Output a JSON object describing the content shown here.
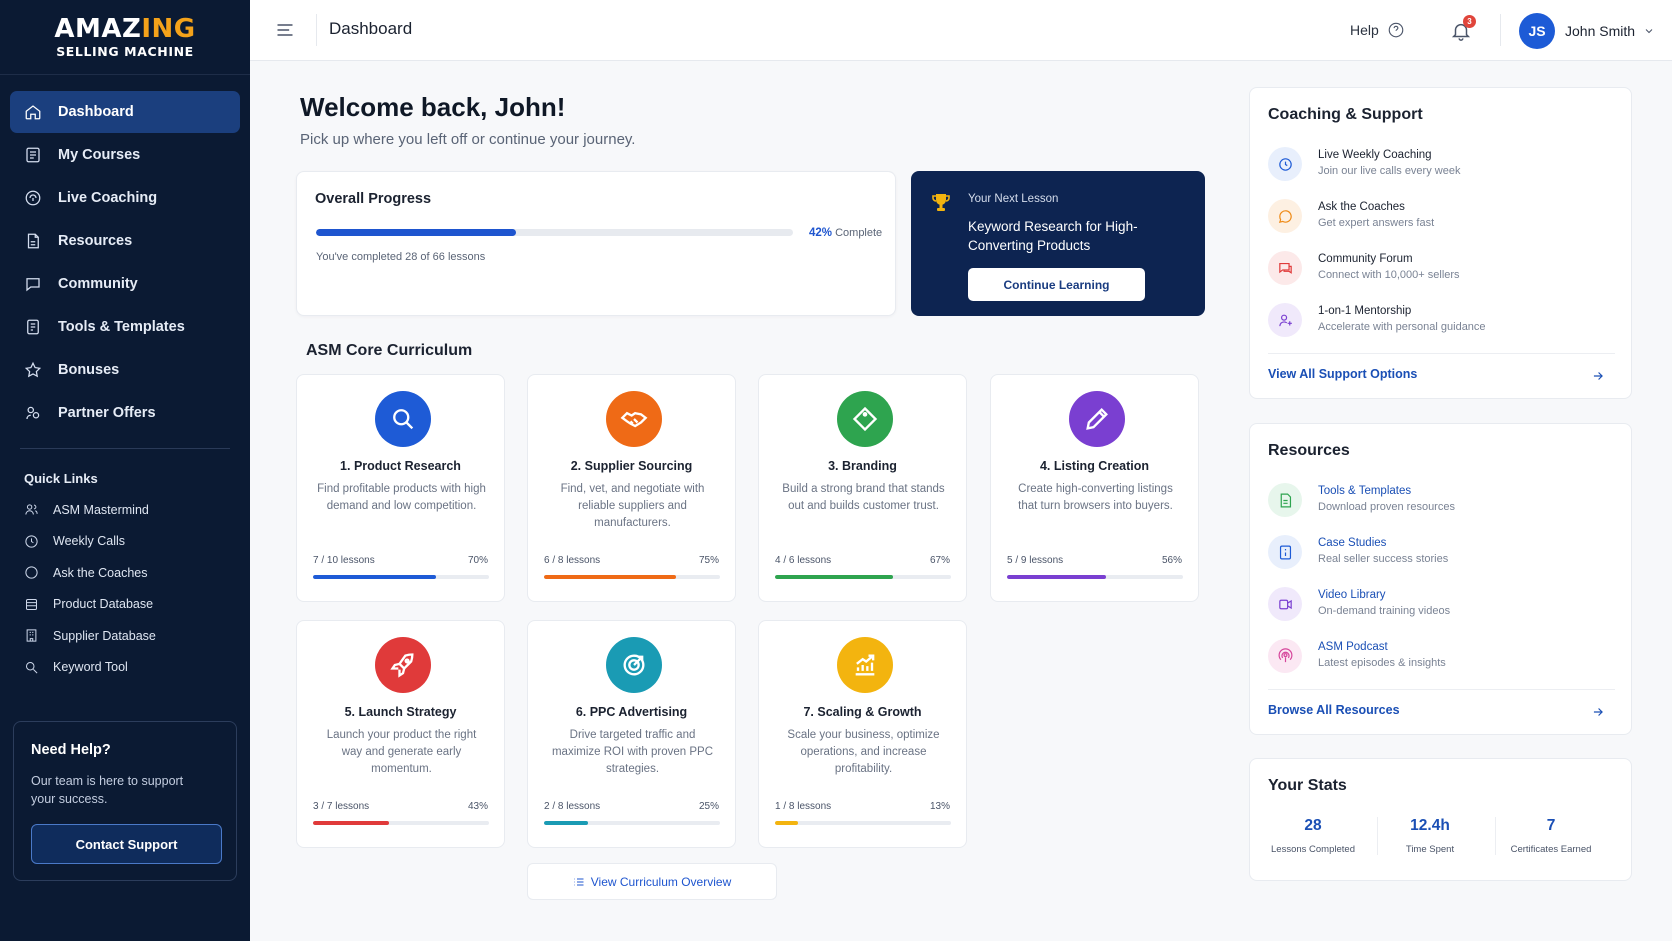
{
  "logo": {
    "line1_a": "AMAZ",
    "line1_b": "ING",
    "line2": "SELLING MACHINE"
  },
  "sidebar": {
    "nav": [
      {
        "label": "Dashboard",
        "icon": "home-icon",
        "active": true
      },
      {
        "label": "My Courses",
        "icon": "courses-icon"
      },
      {
        "label": "Live Coaching",
        "icon": "coaching-icon"
      },
      {
        "label": "Resources",
        "icon": "resources-icon"
      },
      {
        "label": "Community",
        "icon": "community-icon"
      },
      {
        "label": "Tools & Templates",
        "icon": "tools-icon"
      },
      {
        "label": "Bonuses",
        "icon": "star-icon"
      },
      {
        "label": "Partner Offers",
        "icon": "partner-icon"
      }
    ],
    "quick_links_title": "Quick Links",
    "quick_links": [
      {
        "label": "ASM Mastermind",
        "icon": "group-icon"
      },
      {
        "label": "Weekly Calls",
        "icon": "clock-icon"
      },
      {
        "label": "Ask the Coaches",
        "icon": "chat-icon"
      },
      {
        "label": "Product Database",
        "icon": "database-icon"
      },
      {
        "label": "Supplier Database",
        "icon": "building-icon"
      },
      {
        "label": "Keyword Tool",
        "icon": "search-icon"
      }
    ],
    "help": {
      "title": "Need Help?",
      "text": "Our team is here to support your success.",
      "button": "Contact Support"
    }
  },
  "header": {
    "title": "Dashboard",
    "help_label": "Help",
    "notification_count": "3",
    "user_initials": "JS",
    "user_name": "John Smith"
  },
  "welcome": {
    "title": "Welcome back, John!",
    "subtitle": "Pick up where you left off or continue your journey."
  },
  "progress": {
    "title": "Overall Progress",
    "percent_value": 42,
    "percent_text": "42%",
    "complete_label": "Complete",
    "note": "You've completed 28 of 66 lessons"
  },
  "next_lesson": {
    "label": "Your Next Lesson",
    "title": "Keyword Research for High-Converting Products",
    "button": "Continue Learning"
  },
  "curriculum": {
    "title": "ASM Core Curriculum",
    "courses": [
      {
        "title": "1. Product Research",
        "desc": "Find profitable products with high demand and low competition.",
        "lessons": "7 / 10 lessons",
        "pct_text": "70%",
        "pct": 70,
        "color": "#1e5bd6",
        "icon": "search-icon"
      },
      {
        "title": "2. Supplier Sourcing",
        "desc": "Find, vet, and negotiate with reliable suppliers and manufacturers.",
        "lessons": "6 / 8 lessons",
        "pct_text": "75%",
        "pct": 75,
        "color": "#ef6a16",
        "icon": "handshake-icon"
      },
      {
        "title": "3. Branding",
        "desc": "Build a strong brand that stands out and builds customer trust.",
        "lessons": "4 / 6 lessons",
        "pct_text": "67%",
        "pct": 67,
        "color": "#2ea44f",
        "icon": "tag-icon"
      },
      {
        "title": "4. Listing Creation",
        "desc": "Create high-converting listings that turn browsers into buyers.",
        "lessons": "5 / 9 lessons",
        "pct_text": "56%",
        "pct": 56,
        "color": "#7a3fd1",
        "icon": "pencil-icon"
      },
      {
        "title": "5. Launch Strategy",
        "desc": "Launch your product the right way and generate early momentum.",
        "lessons": "3 / 7 lessons",
        "pct_text": "43%",
        "pct": 43,
        "color": "#e03a3a",
        "icon": "rocket-icon"
      },
      {
        "title": "6. PPC Advertising",
        "desc": "Drive targeted traffic and maximize ROI with proven PPC strategies.",
        "lessons": "2 / 8 lessons",
        "pct_text": "25%",
        "pct": 25,
        "color": "#1a9bb4",
        "icon": "target-icon"
      },
      {
        "title": "7. Scaling & Growth",
        "desc": "Scale your business, optimize operations, and increase profitability.",
        "lessons": "1 / 8 lessons",
        "pct_text": "13%",
        "pct": 13,
        "color": "#f3b40f",
        "icon": "growth-chart-icon"
      }
    ],
    "view_all": "View Curriculum Overview"
  },
  "coaching": {
    "title": "Coaching & Support",
    "items": [
      {
        "name": "Live Weekly Coaching",
        "sub": "Join our live calls every week",
        "icon": "clock-icon",
        "color": "#1e5bd6",
        "bg": "#e8effc"
      },
      {
        "name": "Ask the Coaches",
        "sub": "Get expert answers fast",
        "icon": "chat-icon",
        "color": "#ef8a16",
        "bg": "#fdf0e2"
      },
      {
        "name": "Community Forum",
        "sub": "Connect with 10,000+ sellers",
        "icon": "forum-icon",
        "color": "#e03a3a",
        "bg": "#fce9e9"
      },
      {
        "name": "1-on-1 Mentorship",
        "sub": "Accelerate with personal guidance",
        "icon": "mentor-icon",
        "color": "#7a3fd1",
        "bg": "#f0e9fb"
      }
    ],
    "link": "View All Support Options"
  },
  "resources": {
    "title": "Resources",
    "items": [
      {
        "name": "Tools & Templates",
        "sub": "Download proven resources",
        "icon": "document-icon",
        "color": "#2ea44f",
        "bg": "#e7f6ec"
      },
      {
        "name": "Case Studies",
        "sub": "Real seller success stories",
        "icon": "case-study-icon",
        "color": "#1e5bd6",
        "bg": "#e8effc"
      },
      {
        "name": "Video Library",
        "sub": "On-demand training videos",
        "icon": "video-icon",
        "color": "#7a3fd1",
        "bg": "#f0e9fb"
      },
      {
        "name": "ASM Podcast",
        "sub": "Latest episodes & insights",
        "icon": "podcast-icon",
        "color": "#d6459b",
        "bg": "#fbe8f3"
      }
    ],
    "link": "Browse All Resources"
  },
  "stats": {
    "title": "Your Stats",
    "items": [
      {
        "value": "28",
        "label": "Lessons Completed"
      },
      {
        "value": "12.4h",
        "label": "Time Spent"
      },
      {
        "value": "7",
        "label": "Certificates Earned"
      }
    ]
  }
}
